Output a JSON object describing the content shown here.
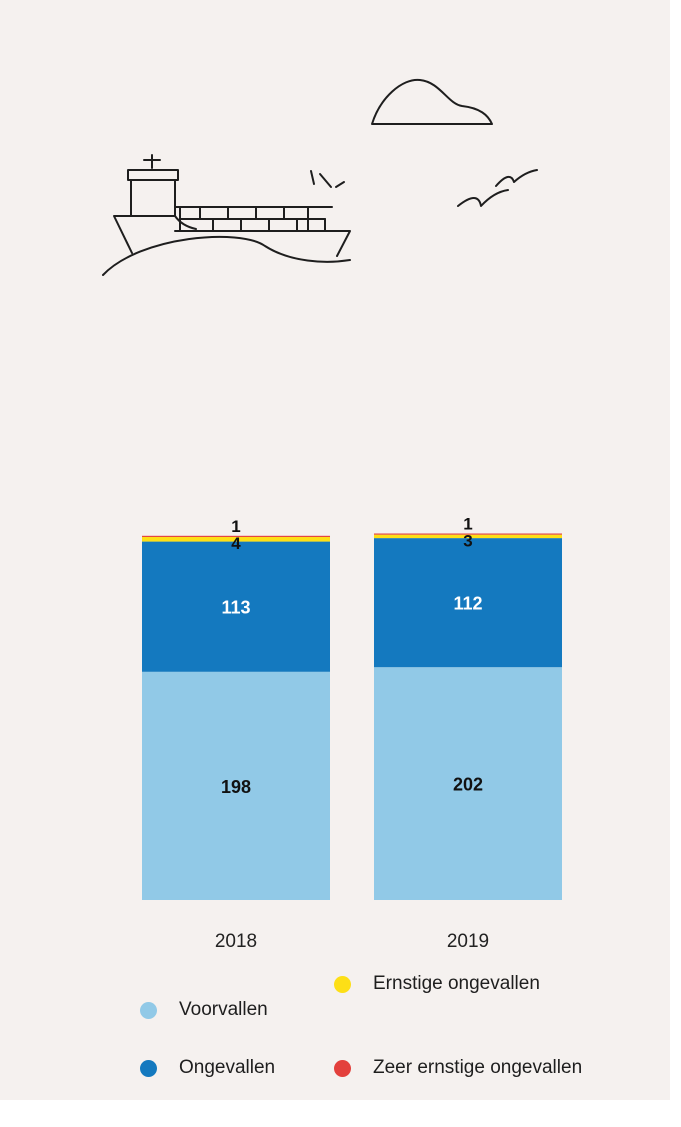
{
  "chart_data": {
    "type": "bar",
    "stacked": true,
    "categories": [
      "2018",
      "2019"
    ],
    "series": [
      {
        "name": "Voorvallen",
        "color": "#91c9e7",
        "values": [
          198,
          202
        ]
      },
      {
        "name": "Ongevallen",
        "color": "#1479bf",
        "values": [
          113,
          112
        ]
      },
      {
        "name": "Ernstige ongevallen",
        "color": "#fddf16",
        "values": [
          4,
          3
        ]
      },
      {
        "name": "Zeer ernstige ongevallen",
        "color": "#e3403c",
        "values": [
          1,
          1
        ]
      }
    ],
    "title": "",
    "xlabel": "",
    "ylabel": "",
    "grid": false,
    "legend": "bottom"
  },
  "legend": {
    "items": [
      {
        "label": "Voorvallen",
        "color": "#91c9e7"
      },
      {
        "label": "Ernstige ongevallen",
        "color": "#fddf16"
      },
      {
        "label": "Ongevallen",
        "color": "#1479bf"
      },
      {
        "label": "Zeer ernstige ongevallen",
        "color": "#e3403c"
      }
    ]
  },
  "illustration": {
    "icons": [
      "ship-icon",
      "cloud-icon",
      "birds-icon"
    ]
  }
}
